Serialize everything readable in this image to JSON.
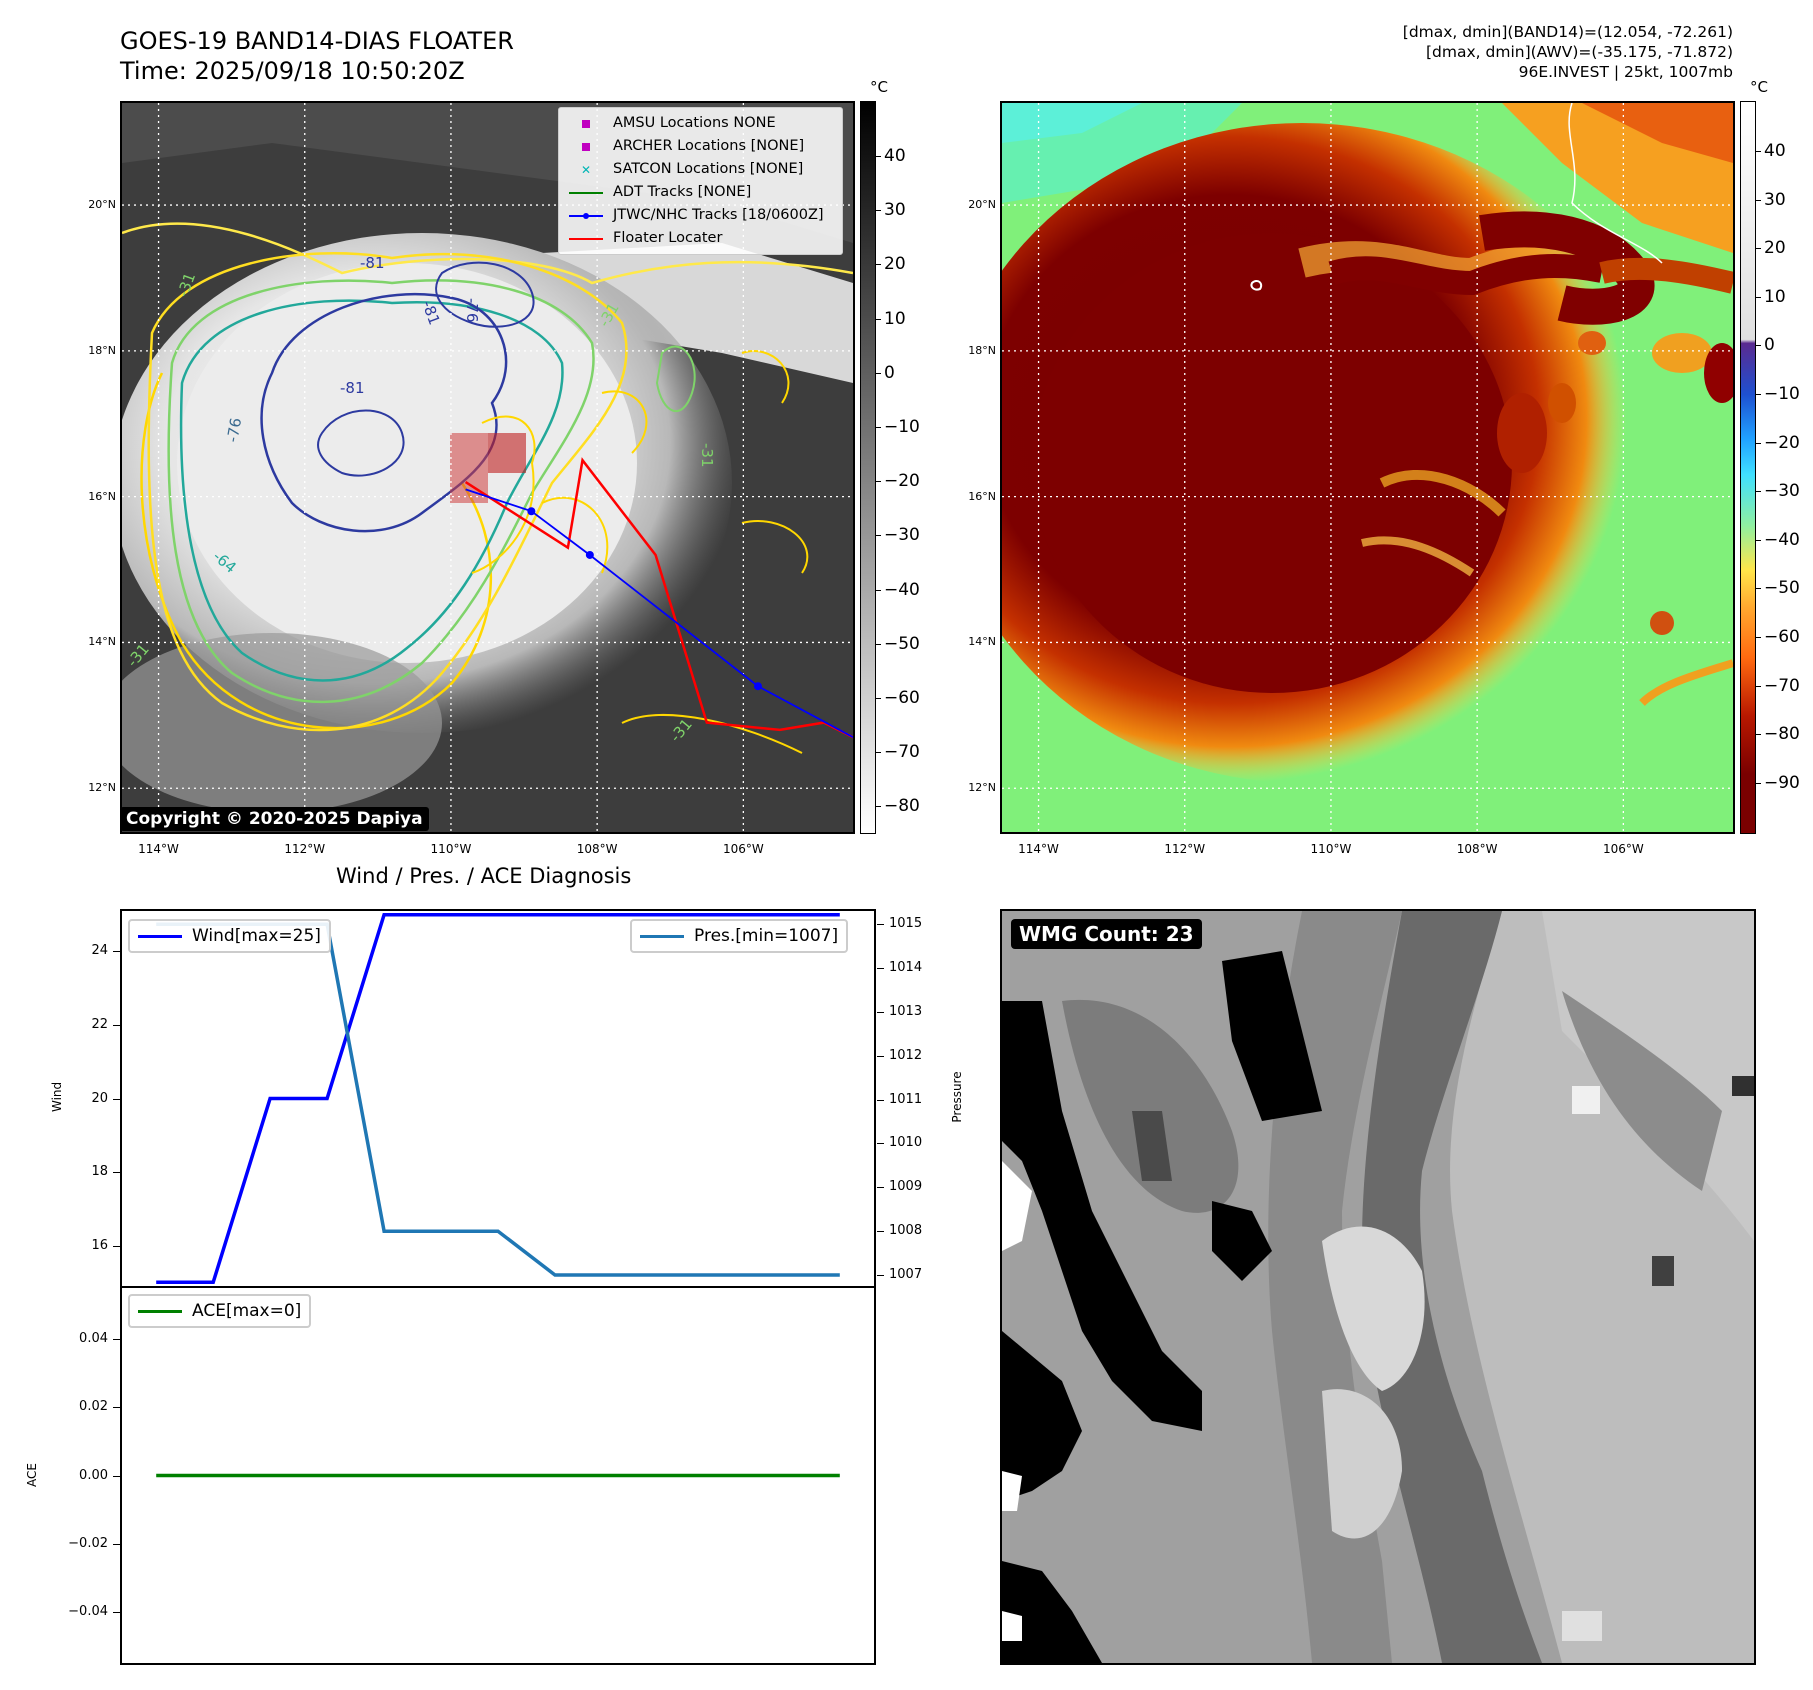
{
  "header": {
    "title_line1": "GOES-19 BAND14-DIAS FLOATER",
    "title_line2": "Time: 2025/09/18 10:50:20Z",
    "info_line1": "[dmax, dmin](BAND14)=(12.054, -72.261)",
    "info_line2": "[dmax, dmin](AWV)=(-35.175, -71.872)",
    "info_line3": "96E.INVEST | 25kt, 1007mb"
  },
  "map_axes": {
    "lon_labels": [
      "114°W",
      "112°W",
      "110°W",
      "108°W",
      "106°W"
    ],
    "lat_labels": [
      "20°N",
      "18°N",
      "16°N",
      "14°N",
      "12°N"
    ],
    "lon_values": [
      -114,
      -112,
      -110,
      -108,
      -106
    ],
    "lat_values": [
      20,
      18,
      16,
      14,
      12
    ],
    "lon_range": [
      -114.5,
      -104.5
    ],
    "lat_range": [
      11.4,
      21.4
    ]
  },
  "panel_ir": {
    "colorbar_unit": "°C",
    "colorbar_ticks": [
      "40",
      "30",
      "20",
      "10",
      "0",
      "−10",
      "−20",
      "−30",
      "−40",
      "−50",
      "−60",
      "−70",
      "−80"
    ],
    "contour_labels": [
      "-81",
      "-81",
      "-81",
      "-76",
      "-76",
      "-64",
      "-31",
      "-31",
      "-31",
      "-31",
      "-31"
    ],
    "copyright": "Copyright © 2020-2025 Dapiya",
    "legend": [
      {
        "label": "AMSU Locations NONE",
        "symbol": "square",
        "color": "#c000c0"
      },
      {
        "label": "ARCHER Locations [NONE]",
        "symbol": "square",
        "color": "#c000c0"
      },
      {
        "label": "SATCON Locations [NONE]",
        "symbol": "x",
        "color": "#00b5b5"
      },
      {
        "label": "ADT Tracks [NONE]",
        "symbol": "line",
        "color": "#008000"
      },
      {
        "label": "JTWC/NHC Tracks [18/0600Z]",
        "symbol": "line-dot",
        "color": "#0000ff"
      },
      {
        "label": "Floater Locater",
        "symbol": "line",
        "color": "#ff0000"
      }
    ],
    "jtwc_track": [
      [
        -104.5,
        12.7
      ],
      [
        -105.8,
        13.4
      ],
      [
        -108.1,
        15.2
      ],
      [
        -108.9,
        15.8
      ],
      [
        -109.8,
        16.1
      ]
    ],
    "floater_track": [
      [
        -109.8,
        16.2
      ],
      [
        -108.4,
        15.3
      ],
      [
        -108.2,
        16.5
      ],
      [
        -107.2,
        15.2
      ],
      [
        -106.5,
        12.9
      ],
      [
        -105.5,
        12.8
      ],
      [
        -104.9,
        12.9
      ],
      [
        -104.5,
        12.7
      ]
    ]
  },
  "panel_awv": {
    "colorbar_unit": "°C",
    "colorbar_ticks": [
      "40",
      "30",
      "20",
      "10",
      "0",
      "−10",
      "−20",
      "−30",
      "−40",
      "−50",
      "−60",
      "−70",
      "−80",
      "−90"
    ]
  },
  "diagnosis": {
    "title": "Wind / Pres. / ACE Diagnosis",
    "wind_axis_label": "Wind",
    "pressure_axis_label": "Pressure",
    "ace_axis_label": "ACE",
    "wind_legend": "Wind[max=25]",
    "pressure_legend": "Pres.[min=1007]",
    "ace_legend": "ACE[max=0]",
    "wind_ticks": [
      "24",
      "22",
      "20",
      "18",
      "16"
    ],
    "pressure_ticks": [
      "1015",
      "1014",
      "1013",
      "1012",
      "1011",
      "1010",
      "1009",
      "1008",
      "1007"
    ],
    "ace_ticks": [
      "0.04",
      "0.02",
      "0.00",
      "−0.02",
      "−0.04"
    ],
    "colors": {
      "wind": "#0000ff",
      "pressure": "#1f77b4",
      "ace": "#008000"
    }
  },
  "chart_data": [
    {
      "type": "line",
      "title": "Wind / Pres. / ACE Diagnosis",
      "x": [
        0,
        1,
        2,
        3,
        4,
        5,
        6,
        7,
        8,
        9,
        10,
        11,
        12
      ],
      "series": [
        {
          "name": "Wind[max=25]",
          "axis": "Wind",
          "values": [
            15,
            15,
            20,
            20,
            25,
            25,
            25,
            25,
            25,
            25,
            25,
            25,
            25
          ]
        },
        {
          "name": "Pres.[min=1007]",
          "axis": "Pressure",
          "values": [
            1015,
            1015,
            1015,
            1015,
            1008,
            1008,
            1008,
            1007,
            1007,
            1007,
            1007,
            1007,
            1007
          ]
        }
      ],
      "ylabel": "Wind",
      "ylabel_right": "Pressure",
      "ylim": [
        14.9,
        25.1
      ],
      "ylim_right": [
        1006.75,
        1015.3
      ]
    },
    {
      "type": "line",
      "x": [
        0,
        1,
        2,
        3,
        4,
        5,
        6,
        7,
        8,
        9,
        10,
        11,
        12
      ],
      "series": [
        {
          "name": "ACE[max=0]",
          "values": [
            0,
            0,
            0,
            0,
            0,
            0,
            0,
            0,
            0,
            0,
            0,
            0,
            0
          ]
        }
      ],
      "ylabel": "ACE",
      "ylim": [
        -0.055,
        0.055
      ]
    }
  ],
  "wmg_panel": {
    "label": "WMG Count: 23"
  }
}
